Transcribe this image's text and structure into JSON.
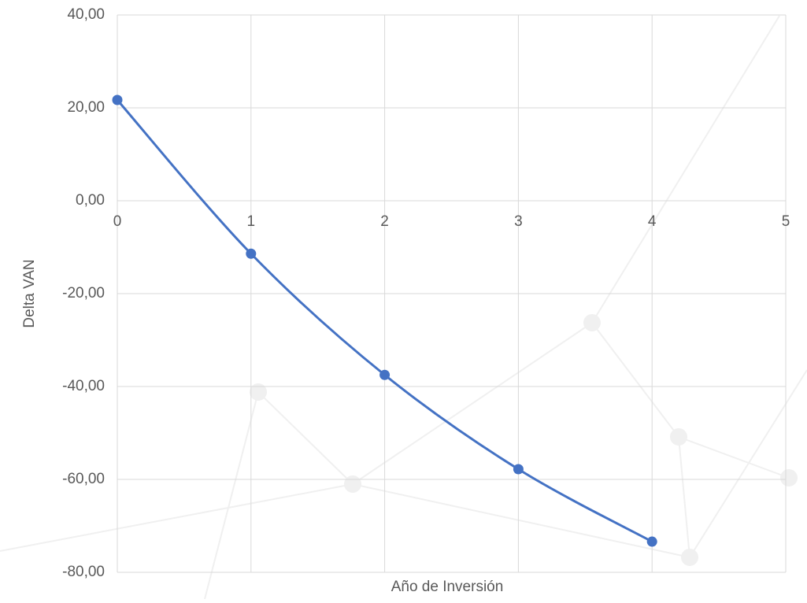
{
  "chart_data": {
    "type": "line",
    "x_label": "Año de Inversión",
    "y_label": "Delta VAN",
    "x": [
      0,
      1,
      2,
      3,
      4
    ],
    "series": [
      {
        "name": "Delta VAN",
        "color": "#4472c4",
        "values": [
          21.7,
          -11.4,
          -37.5,
          -57.8,
          -73.4
        ]
      }
    ],
    "xlim": [
      0,
      5
    ],
    "xticks": [
      0,
      1,
      2,
      3,
      4,
      5
    ],
    "ylim": [
      -80,
      40
    ],
    "yticks": [
      {
        "value": -80,
        "label": "-80,00"
      },
      {
        "value": -60,
        "label": "-60,00"
      },
      {
        "value": -40,
        "label": "-40,00"
      },
      {
        "value": -20,
        "label": "-20,00"
      },
      {
        "value": 0,
        "label": "0,00"
      },
      {
        "value": 20,
        "label": "20,00"
      },
      {
        "value": 40,
        "label": "40,00"
      }
    ],
    "grid": true,
    "smooth": true
  }
}
